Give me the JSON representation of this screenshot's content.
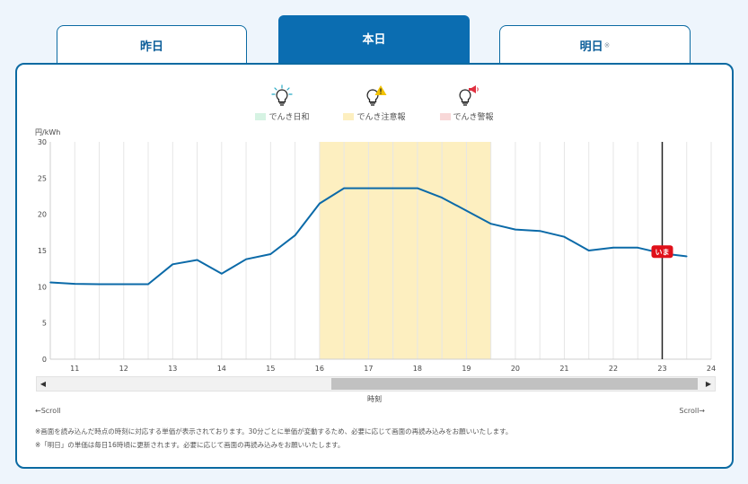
{
  "tabs": [
    {
      "label": "昨日",
      "note": ""
    },
    {
      "label": "本日",
      "note": ""
    },
    {
      "label": "明日",
      "note": "※"
    }
  ],
  "legend": [
    {
      "icon": "bulb-normal-icon",
      "label": "でんき日和",
      "swatch_color": "#d6f3e3",
      "icon_color": "#25a9c4"
    },
    {
      "icon": "bulb-caution-icon",
      "label": "でんき注意報",
      "swatch_color": "#fdefc0",
      "icon_color": "#f2c200"
    },
    {
      "icon": "bulb-warning-icon",
      "label": "でんき警報",
      "swatch_color": "#f8d8d8",
      "icon_color": "#e03040"
    }
  ],
  "chart_data": {
    "type": "line",
    "ylabel": "円/kWh",
    "xlabel": "時刻",
    "ylim": [
      0,
      30
    ],
    "yticks": [
      0,
      5,
      10,
      15,
      20,
      25,
      30
    ],
    "xlim": [
      10.5,
      24
    ],
    "xticks": [
      11,
      12,
      13,
      14,
      15,
      16,
      17,
      18,
      19,
      20,
      21,
      22,
      23,
      24
    ],
    "grid": true,
    "line_color": "#0b6aa8",
    "series": [
      {
        "x": [
          10.5,
          11,
          11.5,
          12,
          12.5,
          13,
          13.5,
          14,
          14.5,
          15,
          15.5,
          16,
          16.5,
          17,
          17.5,
          18,
          18.5,
          19,
          19.5,
          20,
          20.5,
          21,
          21.5,
          22,
          22.5,
          23,
          23.5
        ],
        "values": [
          10.6,
          10.4,
          10.35,
          10.35,
          10.35,
          13.1,
          13.7,
          11.8,
          13.8,
          14.5,
          17.1,
          21.5,
          23.6,
          23.6,
          23.6,
          23.6,
          22.3,
          20.5,
          18.7,
          17.9,
          17.7,
          16.9,
          15.0,
          15.4,
          15.4,
          14.6,
          14.2
        ]
      }
    ],
    "caution_band": {
      "from": 16,
      "to": 19.5,
      "color": "#fdefc0"
    },
    "now_marker": {
      "x": 23,
      "label": "いま",
      "color": "#e0101a"
    }
  },
  "scroll": {
    "left_hint": "←Scroll",
    "right_hint": "Scroll→"
  },
  "footnotes": [
    "※画面を読み込んだ時点の時刻に対応する単価が表示されております。30分ごとに単価が変動するため、必要に応じて画面の再読み込みをお願いいたします。",
    "※「明日」の単価は毎日16時頃に更新されます。必要に応じて画面の再読み込みをお願いいたします。"
  ]
}
